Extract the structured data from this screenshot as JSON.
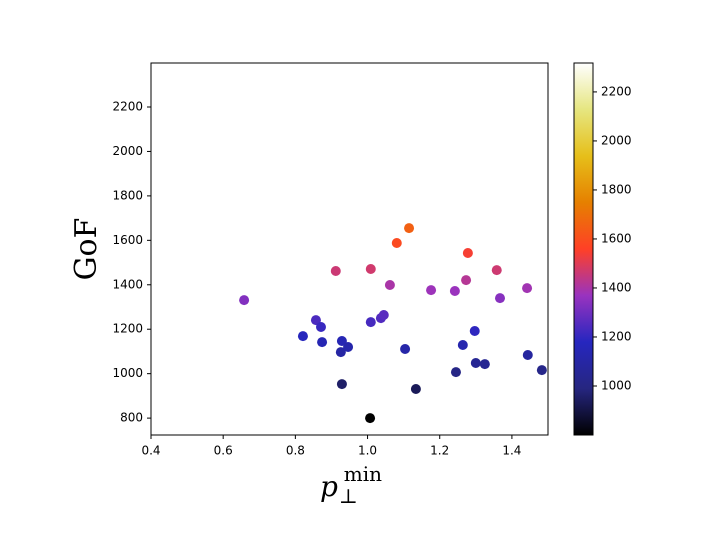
{
  "chart_data": {
    "type": "scatter",
    "ylabel": "GoF",
    "xlabel": {
      "base": "p",
      "sub": "⊥",
      "sup": "min"
    },
    "x": [
      0.658,
      0.821,
      0.857,
      0.871,
      0.874,
      0.912,
      0.926,
      0.929,
      0.929,
      0.946,
      1.007,
      1.009,
      1.009,
      1.037,
      1.045,
      1.062,
      1.081,
      1.104,
      1.115,
      1.134,
      1.176,
      1.242,
      1.245,
      1.264,
      1.273,
      1.278,
      1.297,
      1.3,
      1.325,
      1.358,
      1.367,
      1.442,
      1.444,
      1.483
    ],
    "values": [
      1331,
      1169,
      1241,
      1210,
      1142,
      1462,
      1097,
      1147,
      953,
      1120,
      800,
      1232,
      1471,
      1250,
      1264,
      1399,
      1588,
      1111,
      1655,
      931,
      1376,
      1372,
      1007,
      1129,
      1421,
      1543,
      1192,
      1048,
      1043,
      1466,
      1340,
      1385,
      1084,
      1016
    ],
    "xlim": [
      0.4,
      1.5
    ],
    "xticks": [
      0.4,
      0.6,
      0.8,
      {
        "value": 1.0,
        "label": "1.0"
      },
      1.2,
      1.4
    ],
    "ylim": [
      724,
      2398
    ],
    "yticks": [
      800,
      1000,
      1200,
      1400,
      1600,
      1800,
      2000,
      2200
    ],
    "colorbar": {
      "clim": [
        800,
        2318
      ],
      "ticks": [
        1000,
        1200,
        1400,
        1600,
        1800,
        2000,
        2200
      ],
      "colormap": [
        "#000000",
        "#262680",
        "#2626bf",
        "#9933bf",
        "#ff4026",
        "#e68000",
        "#e6bf1a",
        "#e6e680",
        "#ffffff"
      ]
    }
  }
}
